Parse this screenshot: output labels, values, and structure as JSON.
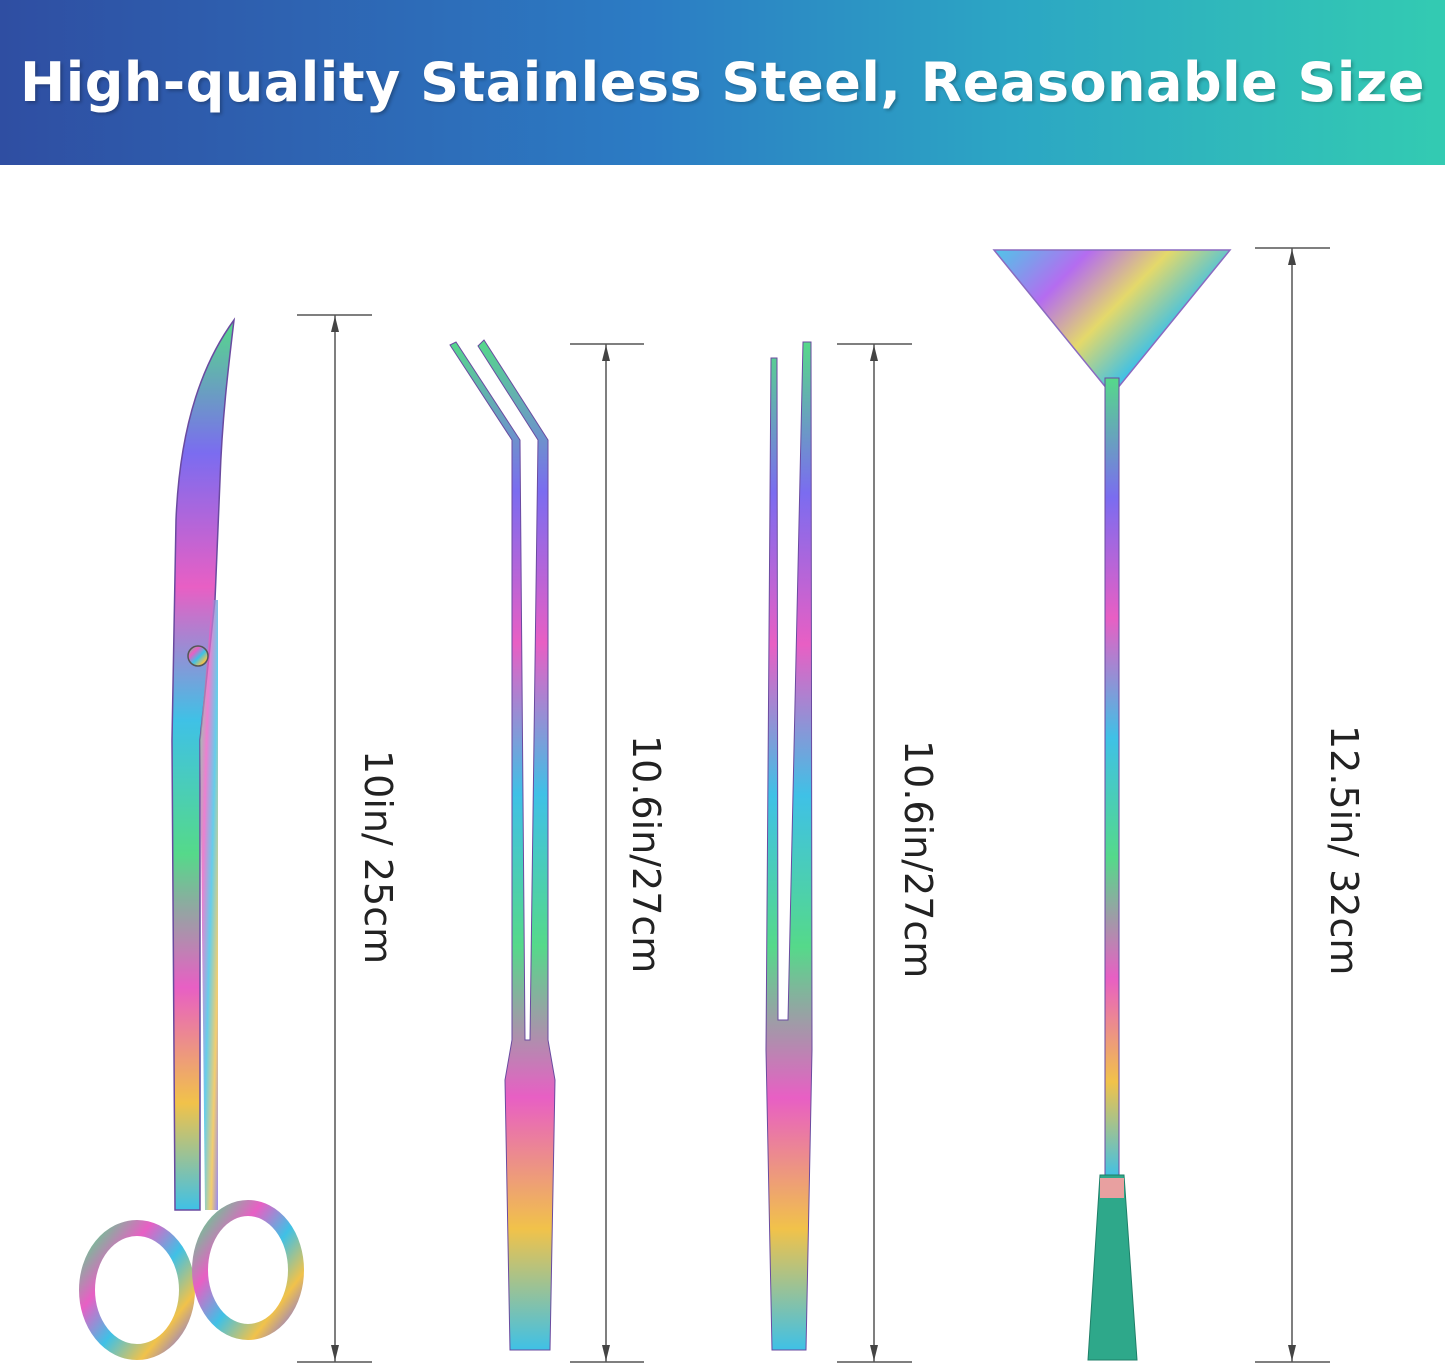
{
  "banner": {
    "title": "High-quality Stainless Steel, Reasonable Size",
    "gradient_colors": [
      "#2f4ea2",
      "#2c7cc4",
      "#33cbb2"
    ]
  },
  "tools": [
    {
      "name": "curved scissors",
      "size_label": "10in/ 25cm"
    },
    {
      "name": "curved tweezers",
      "size_label": "10.6in/27cm"
    },
    {
      "name": "straight tweezers",
      "size_label": "10.6in/27cm"
    },
    {
      "name": "substrate spatula",
      "size_label": "12.5in/ 32cm"
    }
  ],
  "finish_colors": [
    "#e85fc4",
    "#7b6cf0",
    "#3fc1e6",
    "#55d98a",
    "#f1c24a",
    "#f06aa0"
  ]
}
